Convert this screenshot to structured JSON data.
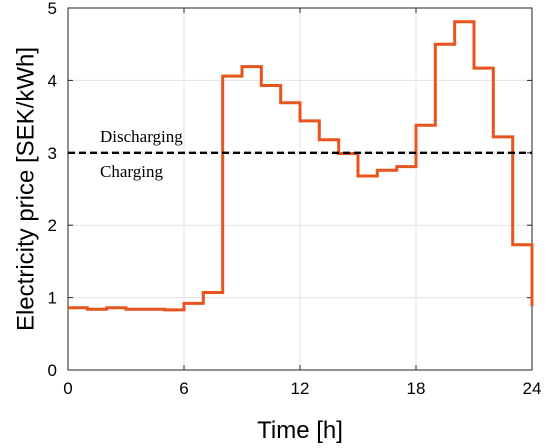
{
  "chart_data": {
    "type": "line",
    "step": true,
    "xlabel": "Time [h]",
    "ylabel": "Electricity price [SEK/kWh]",
    "xlim": [
      0,
      24
    ],
    "ylim": [
      0,
      5
    ],
    "xticks": [
      0,
      6,
      12,
      18,
      24
    ],
    "yticks": [
      0,
      1,
      2,
      3,
      4,
      5
    ],
    "grid": true,
    "series": [
      {
        "color": "#e8541d",
        "x": [
          0,
          1,
          2,
          3,
          4,
          5,
          6,
          7,
          8,
          9,
          10,
          11,
          12,
          13,
          14,
          15,
          16,
          17,
          18,
          19,
          20,
          21,
          22,
          23,
          24
        ],
        "values": [
          0.86,
          0.84,
          0.86,
          0.84,
          0.84,
          0.83,
          0.92,
          1.07,
          4.06,
          4.19,
          3.93,
          3.69,
          3.44,
          3.18,
          2.99,
          2.68,
          2.76,
          2.81,
          3.38,
          4.5,
          4.81,
          4.17,
          3.22,
          1.73,
          0.88
        ]
      }
    ],
    "threshold": {
      "value": 3.0,
      "style": "dashed",
      "color": "#000000",
      "label_above": "Discharging",
      "label_below": "Charging"
    }
  }
}
